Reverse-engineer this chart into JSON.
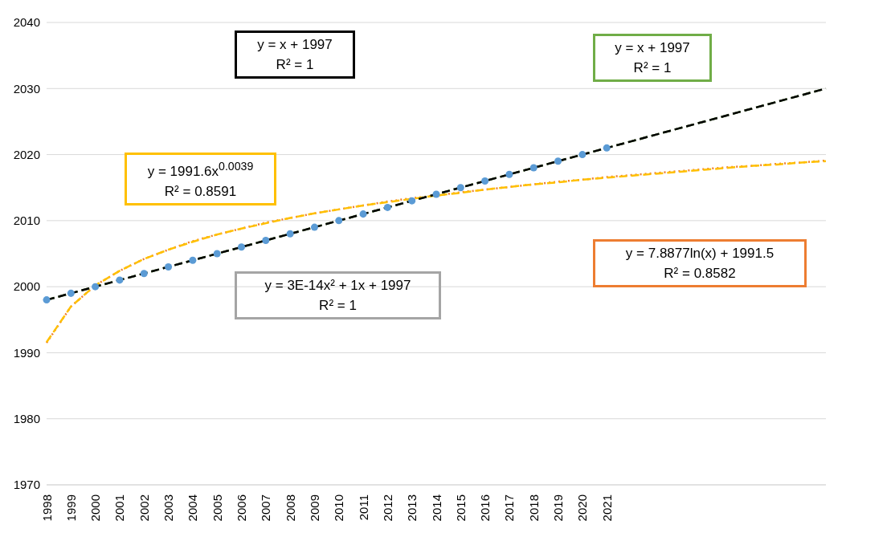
{
  "chart_data": {
    "type": "scatter",
    "categories": [
      "1998",
      "1999",
      "2000",
      "2001",
      "2002",
      "2003",
      "2004",
      "2005",
      "2006",
      "2007",
      "2008",
      "2009",
      "2010",
      "2011",
      "2012",
      "2013",
      "2014",
      "2015",
      "2016",
      "2017",
      "2018",
      "2019",
      "2020",
      "2021",
      null,
      null,
      null,
      null,
      null,
      null,
      null,
      null,
      null
    ],
    "series": [
      {
        "marker": "circle",
        "color": "#5b9bd5",
        "values": [
          1998,
          1999,
          2000,
          2001,
          2002,
          2003,
          2004,
          2005,
          2006,
          2007,
          2008,
          2009,
          2010,
          2011,
          2012,
          2013,
          2014,
          2015,
          2016,
          2017,
          2018,
          2019,
          2020,
          2021,
          null,
          null,
          null,
          null,
          null,
          null,
          null,
          null,
          null
        ]
      },
      {
        "type": "line",
        "marker": "none",
        "line_style": "dashed",
        "color": "#000000",
        "values": [
          1998,
          1999,
          2000,
          2001,
          2002,
          2003,
          2004,
          2005,
          2006,
          2007,
          2008,
          2009,
          2010,
          2011,
          2012,
          2013,
          2014,
          2015,
          2016,
          2017,
          2018,
          2019,
          2020,
          2021,
          2022,
          2023,
          2024,
          2025,
          2026,
          2027,
          2028,
          2029,
          2030
        ]
      },
      {
        "type": "line",
        "marker": "none",
        "line_style": "dashed",
        "color": "#70ad47",
        "values": [
          1998,
          1999,
          2000,
          2001,
          2002,
          2003,
          2004,
          2005,
          2006,
          2007,
          2008,
          2009,
          2010,
          2011,
          2012,
          2013,
          2014,
          2015,
          2016,
          2017,
          2018,
          2019,
          2020,
          2021,
          2022,
          2023,
          2024,
          2025,
          2026,
          2027,
          2028,
          2029,
          2030
        ]
      },
      {
        "type": "line",
        "marker": "none",
        "line_style": "dashed",
        "color": "#ffc000",
        "values": [
          1991.6,
          1997.0,
          2000.2,
          2002.4,
          2004.2,
          2005.6,
          2006.8,
          2007.9,
          2008.8,
          2009.6,
          2010.4,
          2011.1,
          2011.7,
          2012.3,
          2012.8,
          2013.3,
          2013.8,
          2014.2,
          2014.7,
          2015.1,
          2015.5,
          2015.8,
          2016.2,
          2016.5,
          2016.8,
          2017.1,
          2017.4,
          2017.7,
          2018.0,
          2018.3,
          2018.5,
          2018.8,
          2019.0
        ]
      },
      {
        "type": "line",
        "marker": "none",
        "line_style": "dashed",
        "color": "#a5a5a5",
        "values": [
          1998,
          1999,
          2000,
          2001,
          2002,
          2003,
          2004,
          2005,
          2006,
          2007,
          2008,
          2009,
          2010,
          2011,
          2012,
          2013,
          2014,
          2015,
          2016,
          2017,
          2018,
          2019,
          2020,
          2021,
          2022,
          2023,
          2024,
          2025,
          2026,
          2027,
          2028,
          2029,
          2030
        ]
      },
      {
        "type": "line",
        "marker": "none",
        "line_style": "dotted",
        "color": "#ed7d31",
        "values": [
          1991.5,
          1997.0,
          2000.2,
          2002.4,
          2004.2,
          2005.6,
          2006.9,
          2007.9,
          2008.8,
          2009.7,
          2010.4,
          2011.1,
          2011.7,
          2012.3,
          2012.9,
          2013.4,
          2013.8,
          2014.3,
          2014.7,
          2015.1,
          2015.5,
          2015.9,
          2016.2,
          2016.6,
          2016.9,
          2017.2,
          2017.5,
          2017.8,
          2018.1,
          2018.3,
          2018.6,
          2018.8,
          2019.1
        ]
      }
    ],
    "ylim": [
      1970,
      2040
    ],
    "yticks": [
      1970,
      1980,
      1990,
      2000,
      2010,
      2020,
      2030,
      2040
    ],
    "grid": "y",
    "annotations": [
      "y = x + 1997\nR² = 1",
      "y = x + 1997\nR² = 1",
      "y = 1991.6x$^{0.0039}$\nR² = 0.8591",
      "y = 3E-14x² + 1x + 1997\nR² = 1",
      "y = 7.8877ln(x) + 1991.5\nR² = 0.8582"
    ]
  }
}
